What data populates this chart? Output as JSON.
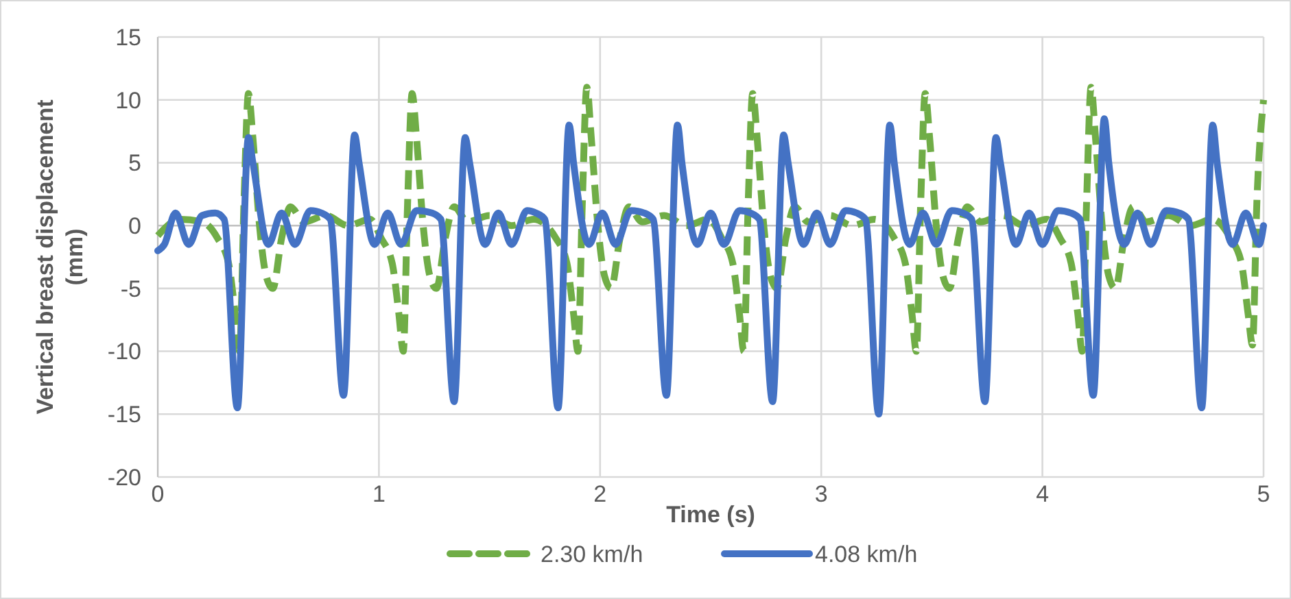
{
  "chart_data": {
    "type": "line",
    "xlabel": "Time (s)",
    "ylabel": "Vertical  breast displacement (mm)",
    "xlim": [
      0,
      5
    ],
    "xticks": [
      0,
      1,
      2,
      3,
      4,
      5
    ],
    "ylim": [
      -20,
      15
    ],
    "yticks": [
      -20,
      -15,
      -10,
      -5,
      0,
      5,
      10,
      15
    ],
    "grid": true,
    "legend": "bottom",
    "marker": "none",
    "series": [
      {
        "name": "2.30 km/h",
        "color": "#70ad47",
        "line_style": "dashed",
        "x": [
          0,
          0.1,
          0.2,
          0.27,
          0.32,
          0.35,
          0.37,
          0.39,
          0.41,
          0.43,
          0.46,
          0.49,
          0.52,
          0.56,
          0.6,
          0.66,
          0.76,
          0.86,
          0.96,
          1.01,
          1.06,
          1.09,
          1.11,
          1.13,
          1.15,
          1.17,
          1.2,
          1.23,
          1.26,
          1.3,
          1.34,
          1.4,
          1.5,
          1.6,
          1.7,
          1.8,
          1.85,
          1.88,
          1.9,
          1.92,
          1.94,
          1.96,
          1.99,
          2.02,
          2.05,
          2.09,
          2.13,
          2.19,
          2.29,
          2.39,
          2.49,
          2.55,
          2.6,
          2.63,
          2.65,
          2.67,
          2.69,
          2.71,
          2.74,
          2.77,
          2.8,
          2.84,
          2.88,
          2.94,
          3.04,
          3.14,
          3.24,
          3.33,
          3.38,
          3.41,
          3.43,
          3.45,
          3.47,
          3.49,
          3.52,
          3.55,
          3.58,
          3.62,
          3.66,
          3.72,
          3.82,
          3.92,
          4.02,
          4.08,
          4.13,
          4.16,
          4.18,
          4.2,
          4.22,
          4.24,
          4.27,
          4.3,
          4.33,
          4.37,
          4.41,
          4.47,
          4.57,
          4.67,
          4.77,
          4.85,
          4.9,
          4.93,
          4.95,
          4.97,
          5
        ],
        "values": [
          -0.8,
          0.5,
          0.3,
          -1,
          -3,
          -7,
          -10,
          2,
          10.5,
          7,
          0,
          -4,
          -5,
          -1,
          1.5,
          0.3,
          0.8,
          0,
          0.5,
          -1,
          -3,
          -7,
          -10,
          2,
          10.5,
          7,
          0,
          -4,
          -5,
          -1,
          1.5,
          0.3,
          0.8,
          0,
          0.5,
          -1,
          -3,
          -7,
          -10,
          2,
          11,
          7,
          0,
          -4,
          -5,
          -1,
          1.5,
          0.3,
          0.8,
          0,
          0.5,
          -1,
          -3,
          -7,
          -10,
          2,
          10.5,
          7,
          0,
          -4,
          -5,
          -1,
          1.5,
          0.3,
          0.8,
          0,
          0.5,
          -1,
          -3,
          -7,
          -10,
          2,
          10.5,
          7,
          0,
          -4,
          -5,
          -1,
          1.5,
          0.3,
          0.8,
          0,
          0.5,
          -1,
          -3,
          -7,
          -10,
          2,
          11,
          7,
          0,
          -4,
          -5,
          -1,
          1.5,
          0.3,
          0.8,
          0,
          0.5,
          -1,
          -3,
          -7,
          -9.5,
          2,
          10
        ]
      },
      {
        "name": "4.08 km/h",
        "color": "#4472c4",
        "line_style": "solid",
        "x": [
          0,
          0.03,
          0.08,
          0.14,
          0.2,
          0.26,
          0.3,
          0.36,
          0.41,
          0.43,
          0.5,
          0.56,
          0.62,
          0.69,
          0.74,
          0.78,
          0.84,
          0.89,
          0.91,
          0.98,
          1.04,
          1.1,
          1.17,
          1.24,
          1.28,
          1.34,
          1.39,
          1.41,
          1.48,
          1.54,
          1.6,
          1.67,
          1.71,
          1.75,
          1.81,
          1.86,
          1.88,
          1.95,
          2.01,
          2.07,
          2.14,
          2.2,
          2.24,
          2.3,
          2.35,
          2.37,
          2.44,
          2.5,
          2.56,
          2.63,
          2.68,
          2.72,
          2.78,
          2.83,
          2.85,
          2.92,
          2.98,
          3.04,
          3.11,
          3.16,
          3.2,
          3.26,
          3.31,
          3.33,
          3.4,
          3.46,
          3.52,
          3.59,
          3.64,
          3.68,
          3.74,
          3.79,
          3.81,
          3.88,
          3.94,
          4,
          4.07,
          4.13,
          4.17,
          4.23,
          4.28,
          4.3,
          4.37,
          4.43,
          4.49,
          4.56,
          4.62,
          4.66,
          4.72,
          4.77,
          4.79,
          4.86,
          4.92,
          4.98,
          5
        ],
        "values": [
          -2,
          -1.5,
          1,
          -1.5,
          0.8,
          1,
          0.5,
          -14.5,
          7,
          5,
          -1.5,
          1,
          -1.5,
          1.2,
          1,
          0.5,
          -13.5,
          7.2,
          5,
          -1.5,
          1,
          -1.5,
          1.2,
          1,
          0.5,
          -14,
          7,
          5,
          -1.5,
          1,
          -1.5,
          1.2,
          1,
          0.5,
          -14.5,
          8,
          5,
          -1.5,
          1,
          -1.5,
          1.2,
          1,
          0.5,
          -13.5,
          8,
          5,
          -1.5,
          1,
          -1.5,
          1.2,
          1,
          0.5,
          -14,
          7.2,
          5,
          -1.5,
          1,
          -1.5,
          1.2,
          1,
          0.5,
          -15,
          8,
          5,
          -1.5,
          1,
          -1.5,
          1.2,
          1,
          0.5,
          -14,
          7,
          5,
          -1.5,
          1,
          -1.5,
          1.2,
          1,
          0.5,
          -13.5,
          8.5,
          5,
          -1.5,
          1,
          -1.5,
          1.2,
          1,
          0.5,
          -14.5,
          8,
          5,
          -1.5,
          1,
          -1.5,
          0
        ]
      }
    ]
  }
}
